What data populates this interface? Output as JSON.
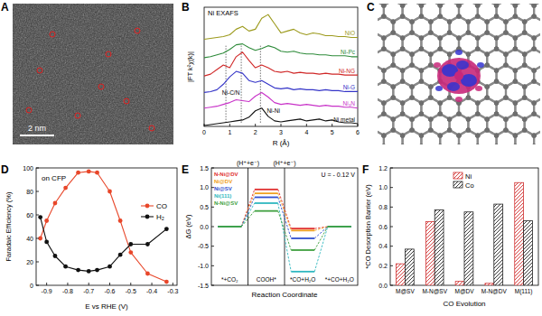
{
  "panels": [
    {
      "label": "A",
      "scale_bar": "2 nm"
    },
    {
      "label": "C"
    }
  ],
  "chart_data": [
    {
      "panel": "B",
      "type": "line",
      "title": "Ni EXAFS",
      "x_label": "R (Å)",
      "y_label": "|FT k²χ(k)|",
      "tick_labels": "x",
      "x": [
        0,
        0.25,
        0.5,
        0.75,
        1,
        1.25,
        1.5,
        1.75,
        2,
        2.25,
        2.5,
        2.75,
        3,
        3.25,
        3.5,
        3.75,
        4,
        4.25,
        4.5,
        4.75,
        5,
        5.25,
        5.5,
        5.75,
        6
      ],
      "xlim": [
        0,
        6
      ],
      "xticks": [
        0,
        1,
        2,
        3,
        4,
        5,
        6
      ],
      "ylim": [
        0,
        6.5
      ],
      "series": [
        {
          "name": "NiO",
          "color": "#9c9a1c",
          "values": [
            4.75,
            4.8,
            4.85,
            4.9,
            5.0,
            5.3,
            5.45,
            5.2,
            5.3,
            5.9,
            6.1,
            5.6,
            5.1,
            5.2,
            5.3,
            5.1,
            5.0,
            5.1,
            5.05,
            4.95,
            4.95,
            4.9,
            4.9,
            4.85,
            4.85
          ]
        },
        {
          "name": "Ni-Pc",
          "color": "#2e8b3a",
          "values": [
            3.75,
            3.8,
            3.9,
            4.0,
            4.2,
            4.45,
            4.5,
            4.3,
            4.15,
            4.25,
            4.4,
            4.3,
            4.1,
            4.05,
            4.1,
            4.0,
            3.95,
            3.95,
            3.9,
            3.9,
            3.85,
            3.85,
            3.85,
            3.8,
            3.8
          ]
        },
        {
          "name": "Ni-NG",
          "color": "#d02828",
          "values": [
            2.75,
            2.85,
            3.1,
            3.35,
            3.2,
            3.8,
            4.05,
            3.6,
            3.2,
            3.35,
            3.2,
            3.0,
            2.95,
            3.0,
            2.9,
            2.95,
            2.9,
            2.9,
            2.85,
            2.9,
            2.85,
            2.85,
            2.8,
            2.8,
            2.8
          ]
        },
        {
          "name": "Ni-G",
          "color": "#3535c8",
          "values": [
            1.85,
            1.9,
            2.0,
            2.3,
            2.7,
            3.0,
            2.9,
            2.5,
            2.4,
            2.5,
            2.3,
            2.1,
            2.05,
            2.1,
            2.0,
            2.05,
            2.0,
            2.0,
            1.95,
            2.0,
            1.95,
            1.95,
            1.9,
            1.9,
            1.9
          ]
        },
        {
          "name": "Ni₃N",
          "color": "#c832c8",
          "values": [
            1.0,
            1.05,
            1.1,
            1.2,
            1.3,
            1.45,
            1.4,
            1.35,
            1.65,
            1.85,
            1.6,
            1.3,
            1.2,
            1.25,
            1.2,
            1.15,
            1.2,
            1.15,
            1.1,
            1.15,
            1.1,
            1.1,
            1.05,
            1.05,
            1.0
          ]
        },
        {
          "name": "Ni metal",
          "color": "#111111",
          "values": [
            0.05,
            0.1,
            0.15,
            0.2,
            0.25,
            0.3,
            0.35,
            0.5,
            0.85,
            1.0,
            0.55,
            0.3,
            0.25,
            0.3,
            0.35,
            0.4,
            0.3,
            0.35,
            0.4,
            0.3,
            0.35,
            0.25,
            0.2,
            0.2,
            0.15
          ]
        }
      ],
      "annotations": [
        {
          "text": "Ni-C/N",
          "x": 0.7,
          "y": 1.72
        },
        {
          "text": "Ni-Ni",
          "x": 2.45,
          "y": 0.75
        }
      ],
      "vlines": [
        0.85,
        1.45,
        2.2
      ]
    },
    {
      "panel": "D",
      "type": "line",
      "marker": "circle",
      "annotation": "on CFP",
      "x_label": "E vs RHE (V)",
      "y_label": "Faradaic Efficiency (%)",
      "legend": "right",
      "x": [
        -0.93,
        -0.9,
        -0.86,
        -0.81,
        -0.75,
        -0.7,
        -0.66,
        -0.6,
        -0.55,
        -0.5,
        -0.42,
        -0.33
      ],
      "xlim": [
        -0.95,
        -0.28
      ],
      "xticks": [
        -0.9,
        -0.8,
        -0.7,
        -0.6,
        -0.5,
        -0.4,
        -0.3
      ],
      "ylim": [
        0,
        100
      ],
      "yticks": [
        0,
        20,
        40,
        60,
        80,
        100
      ],
      "series": [
        {
          "name": "CO",
          "color": "#e8472a",
          "values": [
            40,
            55,
            70,
            83,
            96,
            97,
            96,
            80,
            55,
            28,
            10,
            3
          ]
        },
        {
          "name": "H₂",
          "color": "#111111",
          "values": [
            58,
            37,
            25,
            16,
            13,
            12,
            13,
            16,
            26,
            35,
            35,
            48
          ]
        }
      ]
    },
    {
      "panel": "E",
      "type": "step",
      "x_label": "Reaction Coordinate",
      "y_label": "ΔG (eV)",
      "legend": "upper left",
      "categories": [
        "*+CO₂",
        "COOH*",
        "*CO+H₂O",
        "*+CO+H₂O"
      ],
      "steps": [
        "(H⁺+e⁻)",
        "(H⁺+e⁻)"
      ],
      "annotation": "U = - 0.12 V",
      "ylim": [
        -1.5,
        1.5
      ],
      "yticks": [
        -1.5,
        {
          "value": -1,
          "label": "-1.0"
        },
        -0.5,
        {
          "value": 0,
          "label": "0.0"
        },
        0.5,
        {
          "value": 1,
          "label": "1.0"
        },
        1.5
      ],
      "series": [
        {
          "name": "N-Ni@DV",
          "color": "#e03030",
          "values": [
            0,
            0.95,
            -0.05,
            0
          ]
        },
        {
          "name": "Ni@DV",
          "color": "#f0a020",
          "values": [
            0,
            0.85,
            -0.1,
            0
          ]
        },
        {
          "name": "Ni@SV",
          "color": "#3050d0",
          "values": [
            0,
            0.75,
            -0.3,
            0
          ]
        },
        {
          "name": "Ni(111)",
          "color": "#30b8c0",
          "values": [
            0,
            0.6,
            -1.15,
            0
          ]
        },
        {
          "name": "N-Ni@SV",
          "color": "#40a040",
          "values": [
            0,
            0.4,
            -0.6,
            0
          ]
        }
      ]
    },
    {
      "panel": "F",
      "type": "bar",
      "x_label": "CO Evolution",
      "y_label": "*CO Desorption Barrier (eV)",
      "legend": "top",
      "categories": [
        "M@SV",
        "M-N@SV",
        "M@DV",
        "M-N@DV",
        "M(111)"
      ],
      "ylim": [
        0,
        1.2
      ],
      "yticks": [
        {
          "value": 0,
          "label": "0.0"
        },
        0.2,
        0.4,
        0.6,
        0.8,
        {
          "value": 1,
          "label": "1.0"
        },
        1.2
      ],
      "series": [
        {
          "name": "Ni",
          "color": "#d03030",
          "values": [
            0.22,
            0.65,
            0.04,
            0.02,
            1.05
          ]
        },
        {
          "name": "Co",
          "color": "#222222",
          "values": [
            0.37,
            0.77,
            0.75,
            0.83,
            0.66
          ]
        }
      ]
    }
  ]
}
